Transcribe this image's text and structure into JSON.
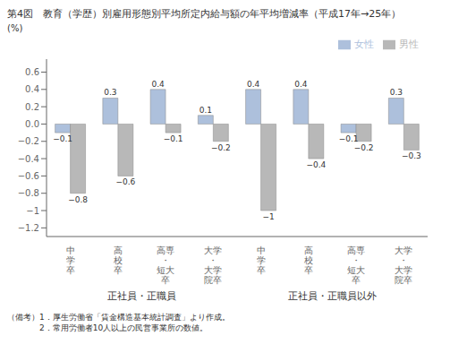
{
  "chart_data": {
    "type": "bar",
    "title": "第4図　教育（学歴）別雇用形態別平均所定内給与額の年平均増減率（平成17年→25年）",
    "ylabel": "(%)",
    "categories": [
      "中\n学\n卒",
      "高\n校\n卒",
      "高専\n・\n短大\n卒",
      "大学\n・\n大学\n院卒",
      "中\n学\n卒",
      "高\n校\n卒",
      "高専\n・\n短大\n卒",
      "大学\n・\n大学\n院卒"
    ],
    "group_labels": [
      "正社員・正職員",
      "正社員・正職員以外"
    ],
    "series": [
      {
        "name": "女性",
        "color": "#adc0dc",
        "values": [
          -0.1,
          0.3,
          0.4,
          0.1,
          0.4,
          0.4,
          -0.1,
          0.3
        ],
        "value_labels": [
          "−0.1",
          "0.3",
          "0.4",
          "0.1",
          "0.4",
          "0.4",
          "−0.1",
          "0.3"
        ]
      },
      {
        "name": "男性",
        "color": "#b8b8b8",
        "values": [
          -0.8,
          -0.6,
          -0.1,
          -0.2,
          -1.0,
          -0.4,
          -0.2,
          -0.3
        ],
        "value_labels": [
          "−0.8",
          "−0.6",
          "−0.1",
          "−0.2",
          "−1",
          "−0.4",
          "−0.2",
          "−0.3"
        ]
      }
    ],
    "ylim": [
      -1.3,
      0.75
    ],
    "yticks": [
      {
        "value": -1.2,
        "label": "−1.2"
      },
      {
        "value": -1.0,
        "label": "−1"
      },
      {
        "value": -0.8,
        "label": "−0.8"
      },
      {
        "value": -0.6,
        "label": "−0.6"
      },
      {
        "value": -0.4,
        "label": "−0.4"
      },
      {
        "value": -0.2,
        "label": "−0.2"
      },
      {
        "value": 0,
        "label": "0.0"
      },
      0.2,
      0.4,
      0.6
    ],
    "data_labels": true,
    "legend": "upper right",
    "grid": false,
    "notes": [
      "（備考）1．厚生労働省「賃金構造基本統計調査」より作成。",
      "　　　　2．常用労働者10人以上の民営事業所の数値。"
    ]
  }
}
